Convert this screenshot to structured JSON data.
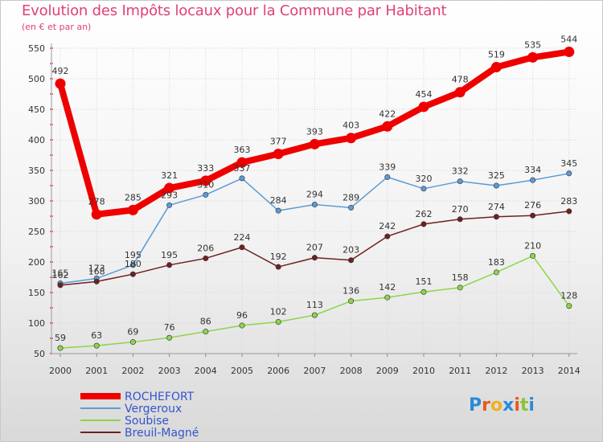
{
  "title": "Evolution des Impôts locaux pour la Commune par Habitant",
  "subtitle": "(en € et par an)",
  "logo_text": "Proxiti",
  "colors": {
    "title": "#e0407a",
    "accent": "#ee0000"
  },
  "chart_data": {
    "type": "line",
    "title": "Evolution des Impôts locaux pour la Commune par Habitant",
    "subtitle": "(en € et par an)",
    "xlabel": "",
    "ylabel": "",
    "x": [
      "2000",
      "2001",
      "2002",
      "2003",
      "2004",
      "2005",
      "2006",
      "2007",
      "2008",
      "2009",
      "2010",
      "2011",
      "2012",
      "2013",
      "2014"
    ],
    "ylim": [
      50,
      550
    ],
    "yticks": [
      50,
      100,
      150,
      200,
      250,
      300,
      350,
      400,
      450,
      500,
      550
    ],
    "grid": true,
    "legend": "bottom-left",
    "series": [
      {
        "name": "ROCHEFORT",
        "color": "#ee0000",
        "width": 8,
        "values": [
          492,
          278,
          285,
          321,
          333,
          363,
          377,
          393,
          403,
          422,
          454,
          478,
          519,
          535,
          544
        ]
      },
      {
        "name": "Vergeroux",
        "color": "#5b9bd5",
        "width": 1.5,
        "values": [
          165,
          173,
          195,
          293,
          310,
          337,
          284,
          294,
          289,
          339,
          320,
          332,
          325,
          334,
          345
        ]
      },
      {
        "name": "Soubise",
        "color": "#8ed44a",
        "width": 1.5,
        "values": [
          59,
          63,
          69,
          76,
          86,
          96,
          102,
          113,
          136,
          142,
          151,
          158,
          183,
          210,
          128
        ]
      },
      {
        "name": "Breuil-Magné",
        "color": "#702020",
        "width": 1.5,
        "values": [
          162,
          168,
          180,
          195,
          206,
          224,
          192,
          207,
          203,
          242,
          262,
          270,
          274,
          276,
          283
        ]
      }
    ]
  }
}
